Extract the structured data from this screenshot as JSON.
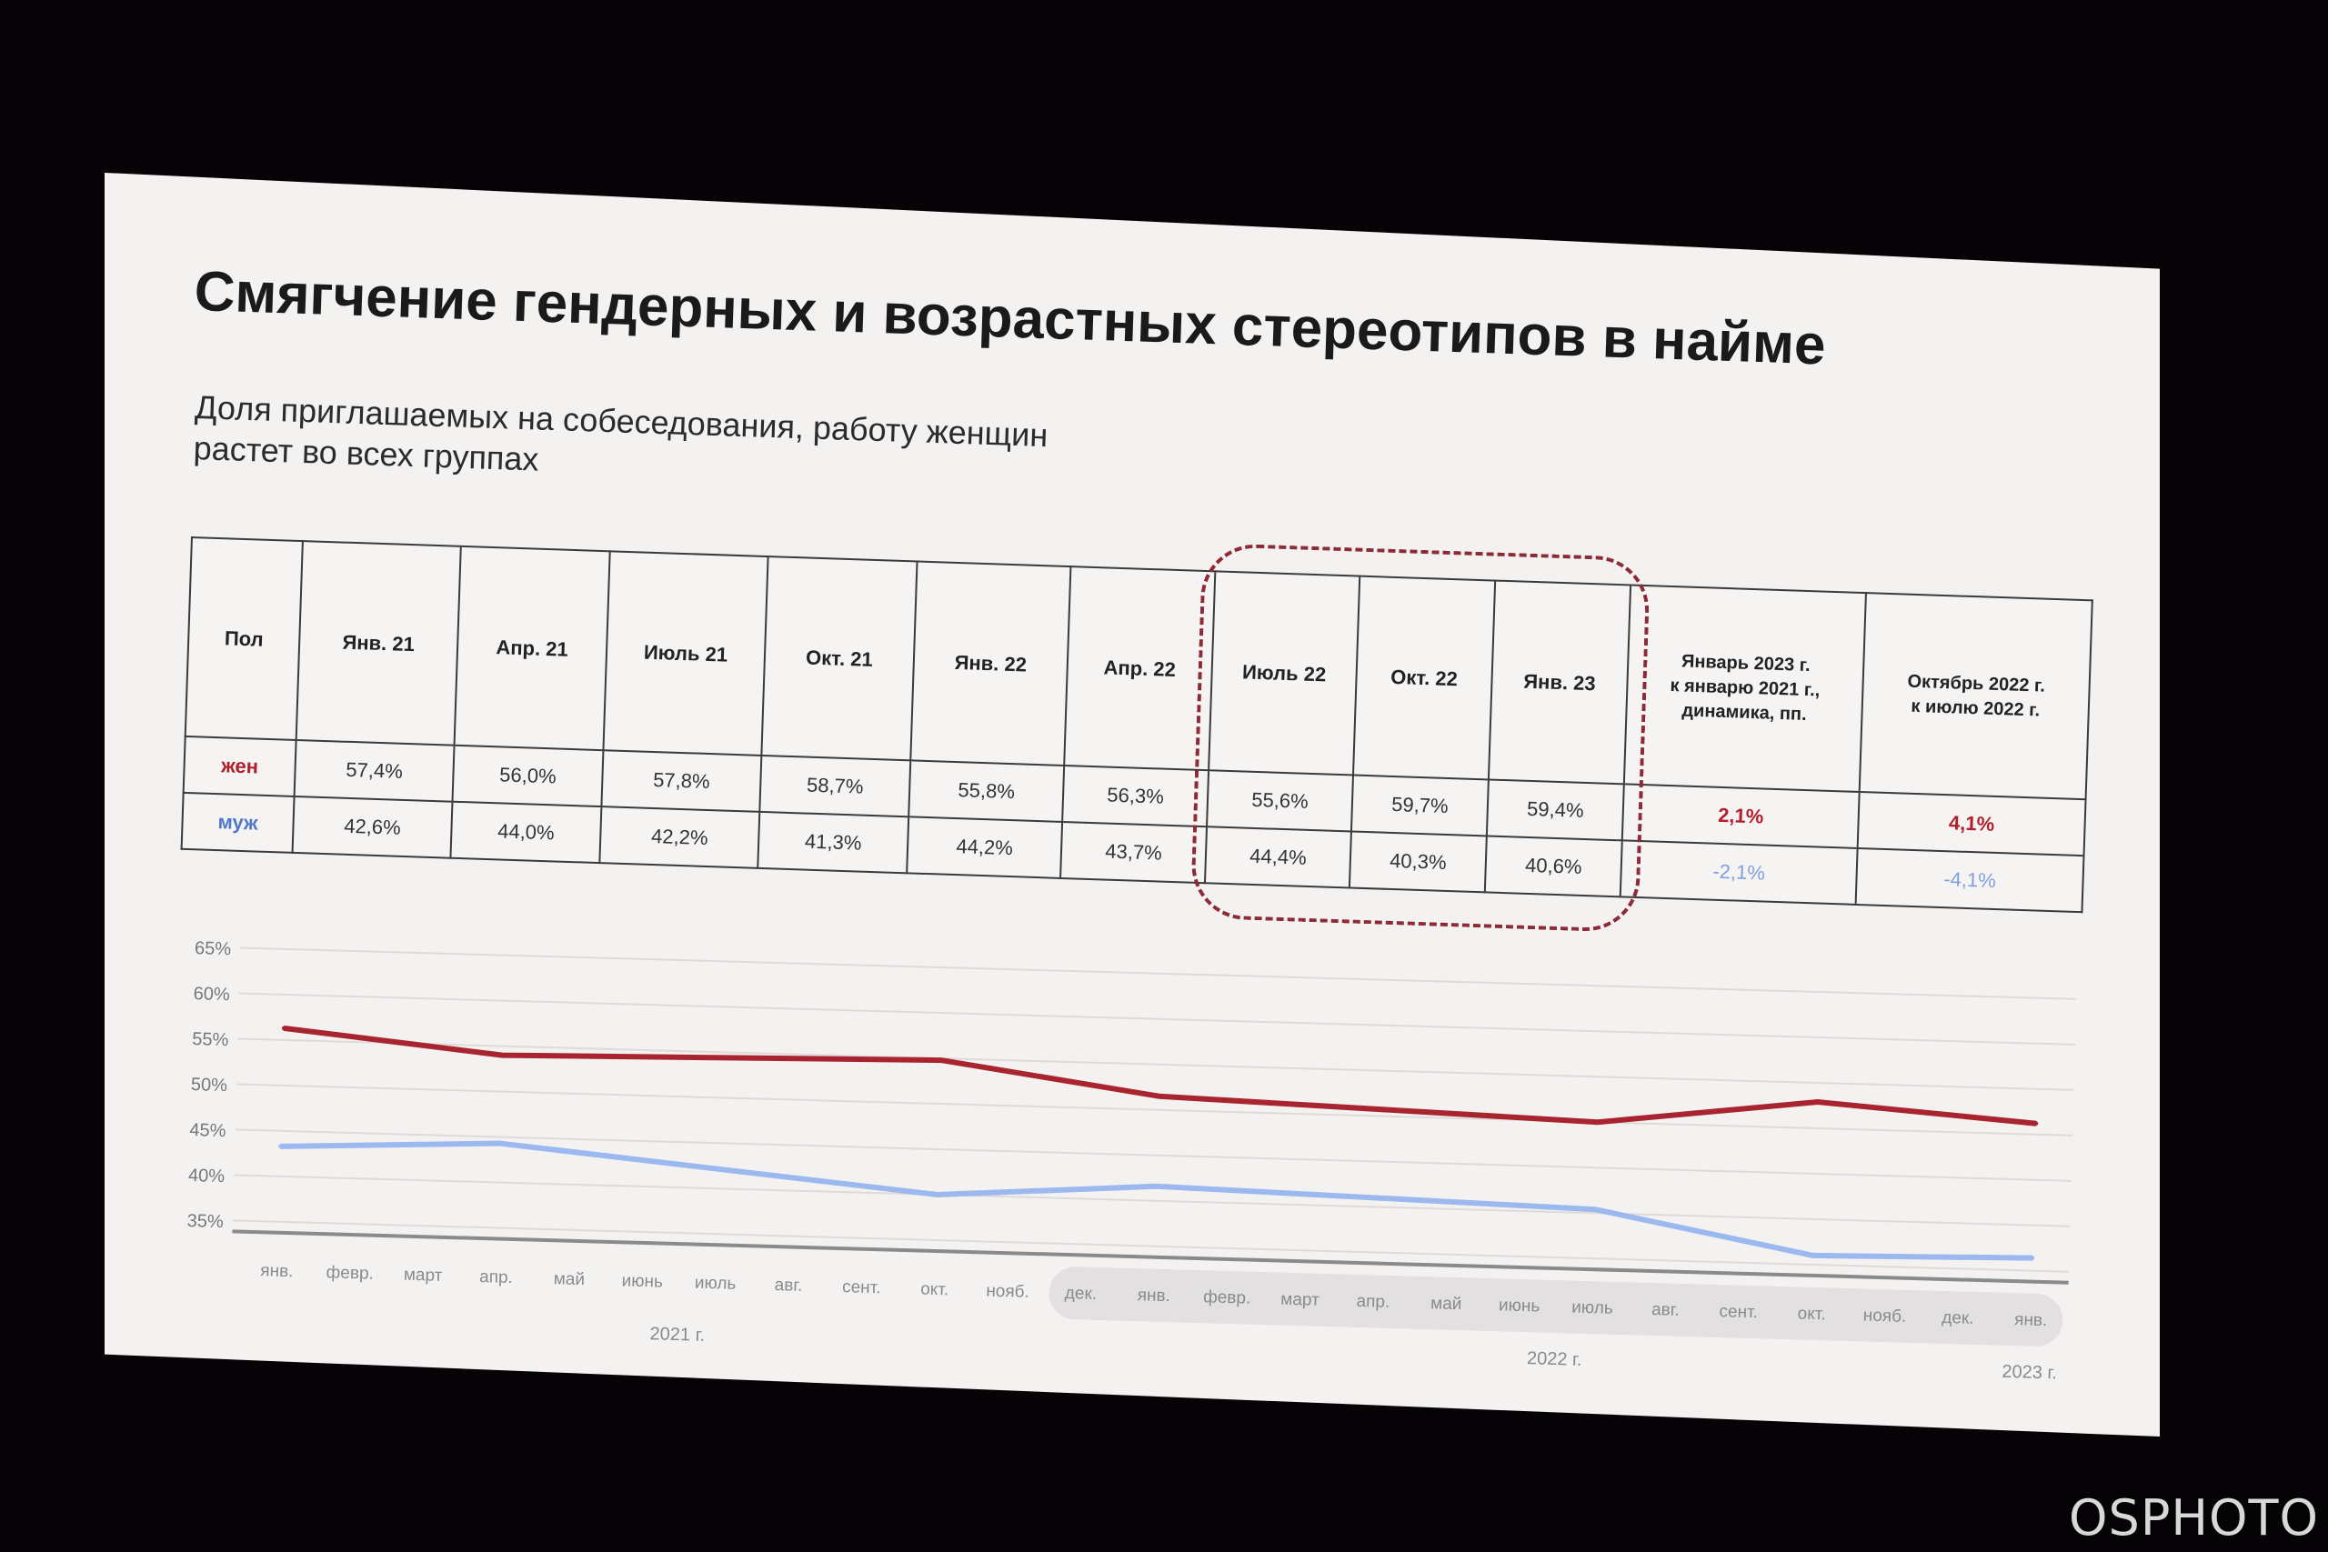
{
  "slide": {
    "title": "Смягчение гендерных и возрастных стереотипов в найме",
    "subtitle_line1": "Доля приглашаемых на собеседования, работу женщин",
    "subtitle_line2": "растет во всех группах"
  },
  "table": {
    "header_label": "Пол",
    "periods": [
      "Янв. 21",
      "Апр. 21",
      "Июль 21",
      "Окт. 21",
      "Янв. 22",
      "Апр. 22",
      "Июль 22",
      "Окт. 22",
      "Янв. 23"
    ],
    "dyn1_header_line1": "Январь 2023 г.",
    "dyn1_header_line2": "к январю 2021 г.,",
    "dyn1_header_line3": "динамика, пп.",
    "dyn2_header_line1": "Октябрь 2022 г.",
    "dyn2_header_line2": "к июлю 2022 г.",
    "rows": [
      {
        "label": "жен",
        "values": [
          "57,4%",
          "56,0%",
          "57,8%",
          "58,7%",
          "55,8%",
          "56,3%",
          "55,6%",
          "59,7%",
          "59,4%"
        ],
        "dyn1": "2,1%",
        "dyn2": "4,1%"
      },
      {
        "label": "муж",
        "values": [
          "42,6%",
          "44,0%",
          "42,2%",
          "41,3%",
          "44,2%",
          "43,7%",
          "44,4%",
          "40,3%",
          "40,6%"
        ],
        "dyn1": "-2,1%",
        "dyn2": "-4,1%"
      }
    ],
    "highlighted_periods": [
      "Июль 22",
      "Окт. 22",
      "Янв. 23"
    ]
  },
  "chart_data": {
    "type": "line",
    "ylim": [
      35,
      65
    ],
    "y_ticks": [
      "65%",
      "60%",
      "55%",
      "50%",
      "45%",
      "40%",
      "35%"
    ],
    "x_labels": [
      "янв.",
      "февр.",
      "март",
      "апр.",
      "май",
      "июнь",
      "июль",
      "авг.",
      "сент.",
      "окт.",
      "нояб.",
      "дек.",
      "янв.",
      "февр.",
      "март",
      "апр.",
      "май",
      "июнь",
      "июль",
      "авг.",
      "сент.",
      "окт.",
      "нояб.",
      "дек.",
      "янв."
    ],
    "year_labels": [
      "2021 г.",
      "2022 г.",
      "2023 г."
    ],
    "series": [
      {
        "name": "жен",
        "color": "#a8252f",
        "points": [
          [
            1,
            56.3
          ],
          [
            4,
            54.0
          ],
          [
            10,
            54.8
          ],
          [
            13,
            51.5
          ],
          [
            19,
            50.0
          ],
          [
            22,
            52.9
          ],
          [
            25,
            51.2
          ]
        ]
      },
      {
        "name": "муж",
        "color": "#9bb8ef",
        "points": [
          [
            1,
            43.3
          ],
          [
            4,
            44.3
          ],
          [
            10,
            40.0
          ],
          [
            13,
            41.6
          ],
          [
            19,
            40.4
          ],
          [
            22,
            36.0
          ],
          [
            25,
            36.4
          ]
        ]
      }
    ],
    "grid": true
  },
  "colors": {
    "women": "#a8252f",
    "men": "#9bb8ef",
    "highlight": "#8d2a35"
  },
  "watermark": "OSPHOTO"
}
